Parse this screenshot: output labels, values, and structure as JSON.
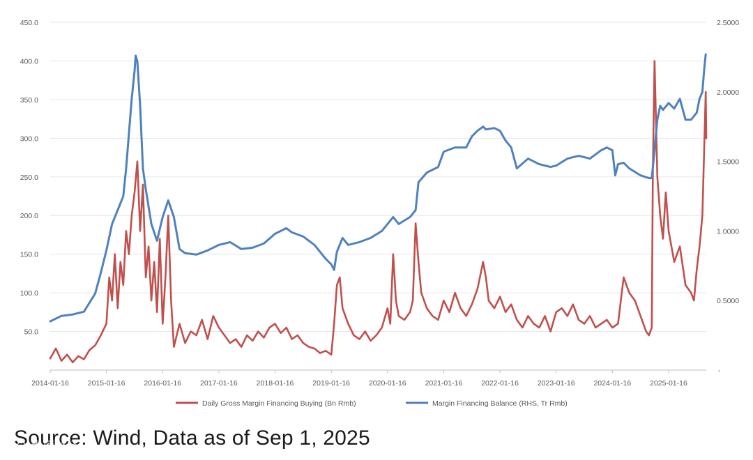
{
  "chart_data": {
    "type": "line",
    "title": "",
    "x_labels": [
      "2014-01-16",
      "2015-01-16",
      "2016-01-16",
      "2017-01-16",
      "2018-01-16",
      "2019-01-16",
      "2020-01-16",
      "2021-01-16",
      "2022-01-16",
      "2023-01-16",
      "2024-01-16",
      "2025-01-16"
    ],
    "x_start": "2014-01-16",
    "x_end": "2025-09-01",
    "y_left": {
      "min": 0,
      "max": 450,
      "ticks": [
        "",
        "50.0",
        "100.0",
        "150.0",
        "200.0",
        "250.0",
        "300.0",
        "350.0",
        "400.0",
        "450.0"
      ]
    },
    "y_right": {
      "min": 0,
      "max": 2.5,
      "ticks": [
        "-",
        "0.5000",
        "1.0000",
        "1.5000",
        "2.0000",
        "2.5000"
      ]
    },
    "series": [
      {
        "name": "Daily Gross Margin Financing Buying (Bn Rmb)",
        "axis": "left",
        "color": "#c0504d",
        "points": [
          [
            2014.0,
            15
          ],
          [
            2014.1,
            28
          ],
          [
            2014.2,
            12
          ],
          [
            2014.3,
            20
          ],
          [
            2014.4,
            10
          ],
          [
            2014.5,
            18
          ],
          [
            2014.6,
            14
          ],
          [
            2014.7,
            26
          ],
          [
            2014.8,
            32
          ],
          [
            2014.9,
            45
          ],
          [
            2015.0,
            60
          ],
          [
            2015.05,
            120
          ],
          [
            2015.1,
            90
          ],
          [
            2015.15,
            150
          ],
          [
            2015.2,
            80
          ],
          [
            2015.25,
            140
          ],
          [
            2015.3,
            110
          ],
          [
            2015.35,
            180
          ],
          [
            2015.4,
            150
          ],
          [
            2015.45,
            200
          ],
          [
            2015.5,
            230
          ],
          [
            2015.55,
            270
          ],
          [
            2015.6,
            180
          ],
          [
            2015.65,
            240
          ],
          [
            2015.7,
            120
          ],
          [
            2015.75,
            160
          ],
          [
            2015.8,
            90
          ],
          [
            2015.85,
            140
          ],
          [
            2015.9,
            75
          ],
          [
            2015.95,
            170
          ],
          [
            2016.0,
            60
          ],
          [
            2016.05,
            120
          ],
          [
            2016.1,
            200
          ],
          [
            2016.15,
            90
          ],
          [
            2016.2,
            30
          ],
          [
            2016.3,
            60
          ],
          [
            2016.4,
            35
          ],
          [
            2016.5,
            50
          ],
          [
            2016.6,
            45
          ],
          [
            2016.7,
            65
          ],
          [
            2016.8,
            40
          ],
          [
            2016.9,
            70
          ],
          [
            2017.0,
            55
          ],
          [
            2017.1,
            45
          ],
          [
            2017.2,
            35
          ],
          [
            2017.3,
            40
          ],
          [
            2017.4,
            30
          ],
          [
            2017.5,
            45
          ],
          [
            2017.6,
            38
          ],
          [
            2017.7,
            50
          ],
          [
            2017.8,
            42
          ],
          [
            2017.9,
            55
          ],
          [
            2018.0,
            60
          ],
          [
            2018.1,
            48
          ],
          [
            2018.2,
            55
          ],
          [
            2018.3,
            40
          ],
          [
            2018.4,
            45
          ],
          [
            2018.5,
            35
          ],
          [
            2018.6,
            30
          ],
          [
            2018.7,
            28
          ],
          [
            2018.8,
            22
          ],
          [
            2018.9,
            25
          ],
          [
            2019.0,
            20
          ],
          [
            2019.05,
            60
          ],
          [
            2019.1,
            110
          ],
          [
            2019.15,
            120
          ],
          [
            2019.2,
            80
          ],
          [
            2019.3,
            60
          ],
          [
            2019.4,
            45
          ],
          [
            2019.5,
            40
          ],
          [
            2019.6,
            50
          ],
          [
            2019.7,
            38
          ],
          [
            2019.8,
            45
          ],
          [
            2019.9,
            55
          ],
          [
            2020.0,
            80
          ],
          [
            2020.05,
            60
          ],
          [
            2020.1,
            150
          ],
          [
            2020.15,
            90
          ],
          [
            2020.2,
            70
          ],
          [
            2020.3,
            65
          ],
          [
            2020.4,
            75
          ],
          [
            2020.45,
            90
          ],
          [
            2020.5,
            190
          ],
          [
            2020.55,
            140
          ],
          [
            2020.6,
            100
          ],
          [
            2020.7,
            80
          ],
          [
            2020.8,
            70
          ],
          [
            2020.9,
            65
          ],
          [
            2021.0,
            90
          ],
          [
            2021.1,
            75
          ],
          [
            2021.2,
            100
          ],
          [
            2021.3,
            80
          ],
          [
            2021.4,
            70
          ],
          [
            2021.5,
            85
          ],
          [
            2021.6,
            105
          ],
          [
            2021.7,
            140
          ],
          [
            2021.75,
            120
          ],
          [
            2021.8,
            90
          ],
          [
            2021.9,
            80
          ],
          [
            2022.0,
            95
          ],
          [
            2022.1,
            75
          ],
          [
            2022.2,
            85
          ],
          [
            2022.3,
            65
          ],
          [
            2022.4,
            55
          ],
          [
            2022.5,
            70
          ],
          [
            2022.6,
            60
          ],
          [
            2022.7,
            55
          ],
          [
            2022.8,
            70
          ],
          [
            2022.9,
            50
          ],
          [
            2023.0,
            75
          ],
          [
            2023.1,
            80
          ],
          [
            2023.2,
            70
          ],
          [
            2023.3,
            85
          ],
          [
            2023.4,
            65
          ],
          [
            2023.5,
            60
          ],
          [
            2023.6,
            70
          ],
          [
            2023.7,
            55
          ],
          [
            2023.8,
            60
          ],
          [
            2023.9,
            65
          ],
          [
            2024.0,
            55
          ],
          [
            2024.1,
            60
          ],
          [
            2024.2,
            120
          ],
          [
            2024.3,
            100
          ],
          [
            2024.4,
            90
          ],
          [
            2024.5,
            70
          ],
          [
            2024.55,
            60
          ],
          [
            2024.6,
            50
          ],
          [
            2024.65,
            45
          ],
          [
            2024.7,
            55
          ],
          [
            2024.72,
            260
          ],
          [
            2024.75,
            400
          ],
          [
            2024.8,
            250
          ],
          [
            2024.85,
            200
          ],
          [
            2024.9,
            170
          ],
          [
            2024.95,
            230
          ],
          [
            2025.0,
            180
          ],
          [
            2025.1,
            140
          ],
          [
            2025.2,
            160
          ],
          [
            2025.3,
            110
          ],
          [
            2025.4,
            100
          ],
          [
            2025.45,
            90
          ],
          [
            2025.5,
            130
          ],
          [
            2025.55,
            160
          ],
          [
            2025.6,
            200
          ],
          [
            2025.63,
            280
          ],
          [
            2025.66,
            360
          ],
          [
            2025.67,
            300
          ]
        ]
      },
      {
        "name": "Margin Financing Balance (RHS, Tr Rmb)",
        "axis": "right",
        "color": "#4f81bd",
        "points": [
          [
            2014.0,
            0.35
          ],
          [
            2014.2,
            0.39
          ],
          [
            2014.4,
            0.4
          ],
          [
            2014.6,
            0.42
          ],
          [
            2014.8,
            0.55
          ],
          [
            2014.9,
            0.7
          ],
          [
            2015.0,
            0.86
          ],
          [
            2015.1,
            1.05
          ],
          [
            2015.2,
            1.15
          ],
          [
            2015.3,
            1.25
          ],
          [
            2015.35,
            1.45
          ],
          [
            2015.4,
            1.7
          ],
          [
            2015.45,
            1.95
          ],
          [
            2015.5,
            2.15
          ],
          [
            2015.52,
            2.26
          ],
          [
            2015.55,
            2.22
          ],
          [
            2015.6,
            1.9
          ],
          [
            2015.65,
            1.45
          ],
          [
            2015.7,
            1.3
          ],
          [
            2015.8,
            1.05
          ],
          [
            2015.9,
            0.93
          ],
          [
            2016.0,
            1.1
          ],
          [
            2016.1,
            1.22
          ],
          [
            2016.2,
            1.1
          ],
          [
            2016.3,
            0.87
          ],
          [
            2016.4,
            0.84
          ],
          [
            2016.6,
            0.83
          ],
          [
            2016.8,
            0.86
          ],
          [
            2017.0,
            0.9
          ],
          [
            2017.2,
            0.92
          ],
          [
            2017.4,
            0.87
          ],
          [
            2017.6,
            0.88
          ],
          [
            2017.8,
            0.91
          ],
          [
            2018.0,
            0.98
          ],
          [
            2018.2,
            1.02
          ],
          [
            2018.3,
            0.99
          ],
          [
            2018.5,
            0.96
          ],
          [
            2018.7,
            0.9
          ],
          [
            2018.9,
            0.8
          ],
          [
            2019.0,
            0.76
          ],
          [
            2019.05,
            0.72
          ],
          [
            2019.1,
            0.85
          ],
          [
            2019.2,
            0.95
          ],
          [
            2019.3,
            0.9
          ],
          [
            2019.5,
            0.92
          ],
          [
            2019.7,
            0.95
          ],
          [
            2019.9,
            1.0
          ],
          [
            2020.0,
            1.05
          ],
          [
            2020.1,
            1.1
          ],
          [
            2020.2,
            1.05
          ],
          [
            2020.4,
            1.1
          ],
          [
            2020.5,
            1.15
          ],
          [
            2020.55,
            1.35
          ],
          [
            2020.7,
            1.42
          ],
          [
            2020.9,
            1.46
          ],
          [
            2021.0,
            1.57
          ],
          [
            2021.2,
            1.6
          ],
          [
            2021.4,
            1.6
          ],
          [
            2021.5,
            1.68
          ],
          [
            2021.6,
            1.72
          ],
          [
            2021.7,
            1.75
          ],
          [
            2021.75,
            1.73
          ],
          [
            2021.9,
            1.74
          ],
          [
            2022.0,
            1.72
          ],
          [
            2022.1,
            1.65
          ],
          [
            2022.2,
            1.6
          ],
          [
            2022.3,
            1.45
          ],
          [
            2022.5,
            1.52
          ],
          [
            2022.7,
            1.48
          ],
          [
            2022.9,
            1.46
          ],
          [
            2023.0,
            1.47
          ],
          [
            2023.2,
            1.52
          ],
          [
            2023.4,
            1.54
          ],
          [
            2023.6,
            1.52
          ],
          [
            2023.8,
            1.58
          ],
          [
            2023.9,
            1.6
          ],
          [
            2024.0,
            1.58
          ],
          [
            2024.05,
            1.4
          ],
          [
            2024.1,
            1.48
          ],
          [
            2024.2,
            1.49
          ],
          [
            2024.3,
            1.45
          ],
          [
            2024.5,
            1.4
          ],
          [
            2024.65,
            1.38
          ],
          [
            2024.7,
            1.38
          ],
          [
            2024.75,
            1.58
          ],
          [
            2024.8,
            1.8
          ],
          [
            2024.85,
            1.9
          ],
          [
            2024.9,
            1.87
          ],
          [
            2025.0,
            1.92
          ],
          [
            2025.1,
            1.88
          ],
          [
            2025.2,
            1.95
          ],
          [
            2025.3,
            1.8
          ],
          [
            2025.4,
            1.8
          ],
          [
            2025.5,
            1.85
          ],
          [
            2025.55,
            1.95
          ],
          [
            2025.6,
            2.0
          ],
          [
            2025.63,
            2.15
          ],
          [
            2025.66,
            2.27
          ]
        ]
      }
    ]
  },
  "legend": {
    "series1_label": "Daily Gross Margin Financing Buying (Bn Rmb)",
    "series2_label": "Margin Financing Balance (RHS, Tr Rmb)"
  },
  "footer": {
    "source": "Source: Wind, Data as of Sep 1, 2025",
    "watermark": "@ 大硕财经"
  }
}
